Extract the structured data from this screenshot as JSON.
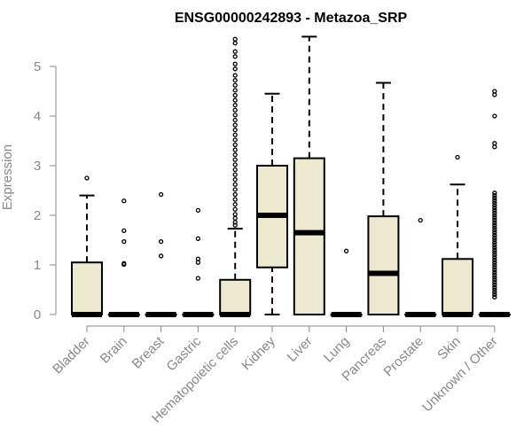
{
  "chart_data": {
    "type": "boxplot",
    "title": "ENSG00000242893 - Metazoa_SRP",
    "xlabel": "",
    "ylabel": "Expression",
    "ylim": [
      0,
      5.5
    ],
    "yticks": [
      0,
      1,
      2,
      3,
      4,
      5
    ],
    "grid": false,
    "box_fill": "#ede8d0",
    "line_color": "#000000",
    "categories": [
      "Bladder",
      "Brain",
      "Breast",
      "Gastric",
      "Hematopoietic cells",
      "Kidney",
      "Liver",
      "Lung",
      "Pancreas",
      "Prostate",
      "Skin",
      "Unknown / Other"
    ],
    "boxes": [
      {
        "min": 0,
        "q1": 0,
        "median": 0,
        "q3": 1.05,
        "max": 2.4,
        "outliers": [
          2.75
        ]
      },
      {
        "min": 0,
        "q1": 0,
        "median": 0,
        "q3": 0,
        "max": 0,
        "outliers": [
          2.29,
          1.69,
          1.47,
          1.03,
          1.01
        ]
      },
      {
        "min": 0,
        "q1": 0,
        "median": 0,
        "q3": 0,
        "max": 0,
        "outliers": [
          2.42,
          1.47,
          1.18
        ]
      },
      {
        "min": 0,
        "q1": 0,
        "median": 0,
        "q3": 0,
        "max": 0,
        "outliers": [
          2.1,
          1.53,
          1.12,
          1.05,
          0.73
        ]
      },
      {
        "min": 0,
        "q1": 0,
        "median": 0,
        "q3": 0.7,
        "max": 1.73,
        "outliers": [
          5.55,
          5.47,
          5.3,
          5.2,
          5.05,
          4.95,
          4.82,
          4.72,
          4.62,
          4.52,
          4.42,
          4.32,
          4.22,
          4.12,
          4.02,
          3.92,
          3.82,
          3.72,
          3.62,
          3.52,
          3.42,
          3.32,
          3.22,
          3.12,
          3.02,
          2.92,
          2.82,
          2.72,
          2.62,
          2.52,
          2.42,
          2.32,
          2.22,
          2.12,
          2.02,
          1.94,
          1.86,
          1.8
        ]
      },
      {
        "min": 0,
        "q1": 0.95,
        "median": 2.0,
        "q3": 3.0,
        "max": 4.45,
        "outliers": []
      },
      {
        "min": 0,
        "q1": 0,
        "median": 1.65,
        "q3": 3.15,
        "max": 5.6,
        "outliers": []
      },
      {
        "min": 0,
        "q1": 0,
        "median": 0,
        "q3": 0,
        "max": 0,
        "outliers": [
          1.28
        ]
      },
      {
        "min": 0,
        "q1": 0,
        "median": 0.83,
        "q3": 1.98,
        "max": 4.67,
        "outliers": []
      },
      {
        "min": 0,
        "q1": 0,
        "median": 0,
        "q3": 0,
        "max": 0,
        "outliers": [
          1.9
        ]
      },
      {
        "min": 0,
        "q1": 0,
        "median": 0,
        "q3": 1.12,
        "max": 2.62,
        "outliers": [
          3.17
        ]
      },
      {
        "min": 0,
        "q1": 0,
        "median": 0,
        "q3": 0,
        "max": 0,
        "outliers": [
          4.5,
          4.43,
          4.0,
          3.45,
          3.38,
          2.45,
          2.4,
          2.35,
          2.3,
          2.25,
          2.2,
          2.15,
          2.1,
          2.05,
          2.0,
          1.95,
          1.9,
          1.85,
          1.8,
          1.75,
          1.7,
          1.65,
          1.6,
          1.55,
          1.5,
          1.45,
          1.4,
          1.35,
          1.3,
          1.25,
          1.2,
          1.15,
          1.1,
          1.05,
          1.0,
          0.95,
          0.9,
          0.85,
          0.8,
          0.75,
          0.7,
          0.65,
          0.6,
          0.55,
          0.5,
          0.45,
          0.4,
          0.35
        ]
      }
    ]
  }
}
